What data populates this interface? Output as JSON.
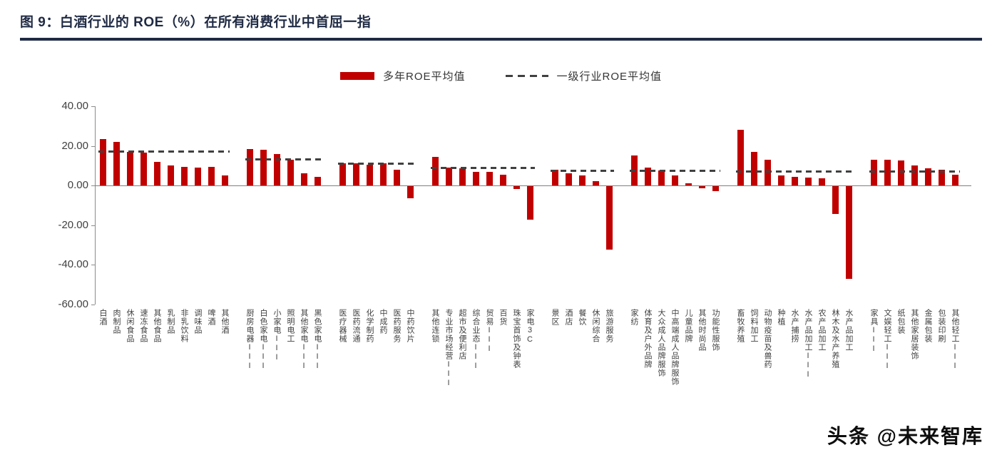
{
  "header": {
    "title": "图 9：白酒行业的 ROE（%）在所有消费行业中首屈一指"
  },
  "watermark": {
    "text": "头条 @未来智库"
  },
  "chart_data": {
    "type": "bar",
    "title": "图 9：白酒行业的 ROE（%）在所有消费行业中首屈一指",
    "unit": "%",
    "ylim": [
      -60,
      40
    ],
    "ytick_step": 20,
    "ytick_labels": [
      "40.00",
      "20.00",
      "0.00",
      "-20.00",
      "-40.00",
      "-60.00"
    ],
    "bar_color": "#c00000",
    "avg_dash_color": "#404040",
    "grid": false,
    "legend_position": "top-center",
    "legend": [
      {
        "label": "多年ROE平均值",
        "swatch": "bar"
      },
      {
        "label": "一级行业ROE平均值",
        "swatch": "dashed-line"
      }
    ],
    "groups": [
      {
        "avg": 17,
        "items": [
          {
            "label": "白酒",
            "value": 23.5
          },
          {
            "label": "肉制品",
            "value": 22
          },
          {
            "label": "休闲食品",
            "value": 17
          },
          {
            "label": "速冻食品",
            "value": 16.5
          },
          {
            "label": "其他食品",
            "value": 12
          },
          {
            "label": "乳制品",
            "value": 10
          },
          {
            "label": "非乳饮料",
            "value": 9.5
          },
          {
            "label": "调味品",
            "value": 9
          },
          {
            "label": "啤酒",
            "value": 9.5
          },
          {
            "label": "其他酒",
            "value": 5
          }
        ]
      },
      {
        "avg": 13,
        "items": [
          {
            "label": "厨房电器III",
            "value": 18.5
          },
          {
            "label": "白色家电III",
            "value": 18
          },
          {
            "label": "小家电III",
            "value": 16
          },
          {
            "label": "照明电工",
            "value": 13
          },
          {
            "label": "其他家电III",
            "value": 6
          },
          {
            "label": "黑色家电III",
            "value": 4.5
          }
        ]
      },
      {
        "avg": 11,
        "items": [
          {
            "label": "医疗器械",
            "value": 11
          },
          {
            "label": "医药流通",
            "value": 11
          },
          {
            "label": "化学制药",
            "value": 10.5
          },
          {
            "label": "中成药",
            "value": 11
          },
          {
            "label": "医药服务",
            "value": 8
          },
          {
            "label": "中药饮片",
            "value": -6
          }
        ]
      },
      {
        "avg": 9,
        "items": [
          {
            "label": "其他连锁",
            "value": 14.5
          },
          {
            "label": "专业市场经营III",
            "value": 9
          },
          {
            "label": "超市及便利店",
            "value": 8.5
          },
          {
            "label": "综合业态III",
            "value": 7
          },
          {
            "label": "贸易III",
            "value": 7
          },
          {
            "label": "百货",
            "value": 5.5
          },
          {
            "label": "珠宝首饰及钟表",
            "value": -1.5
          },
          {
            "label": "家电3C",
            "value": -17
          }
        ]
      },
      {
        "avg": 7.5,
        "items": [
          {
            "label": "景区",
            "value": 8
          },
          {
            "label": "酒店",
            "value": 6
          },
          {
            "label": "餐饮",
            "value": 5
          },
          {
            "label": "休闲综合",
            "value": 2
          },
          {
            "label": "旅游服务",
            "value": -32
          }
        ]
      },
      {
        "avg": 7.5,
        "items": [
          {
            "label": "家纺",
            "value": 15
          },
          {
            "label": "体育及户外品牌",
            "value": 9
          },
          {
            "label": "大众成人品牌服饰",
            "value": 7.5
          },
          {
            "label": "中高端成人品牌服饰",
            "value": 5
          },
          {
            "label": "儿童品牌",
            "value": 1
          },
          {
            "label": "其他时尚品",
            "value": -1
          },
          {
            "label": "功能性服饰",
            "value": -2.5
          }
        ]
      },
      {
        "avg": 7,
        "items": [
          {
            "label": "畜牧养殖",
            "value": 28
          },
          {
            "label": "饲料加工",
            "value": 17
          },
          {
            "label": "动物疫苗及兽药",
            "value": 13
          },
          {
            "label": "种植",
            "value": 5
          },
          {
            "label": "水产捕捞",
            "value": 4.5
          },
          {
            "label": "水产品加工III",
            "value": 4
          },
          {
            "label": "农产品加工",
            "value": 3.5
          },
          {
            "label": "林木及水产养殖",
            "value": -14
          },
          {
            "label": "水产品加工",
            "value": -47
          }
        ]
      },
      {
        "avg": 7,
        "items": [
          {
            "label": "家具III",
            "value": 13
          },
          {
            "label": "文娱轻工III",
            "value": 13
          },
          {
            "label": "纸包装",
            "value": 12.5
          },
          {
            "label": "其他家居装饰",
            "value": 10
          },
          {
            "label": "金属包装",
            "value": 8.5
          },
          {
            "label": "包装印刷",
            "value": 8
          },
          {
            "label": "其他轻工III",
            "value": 5.5
          }
        ]
      }
    ]
  }
}
